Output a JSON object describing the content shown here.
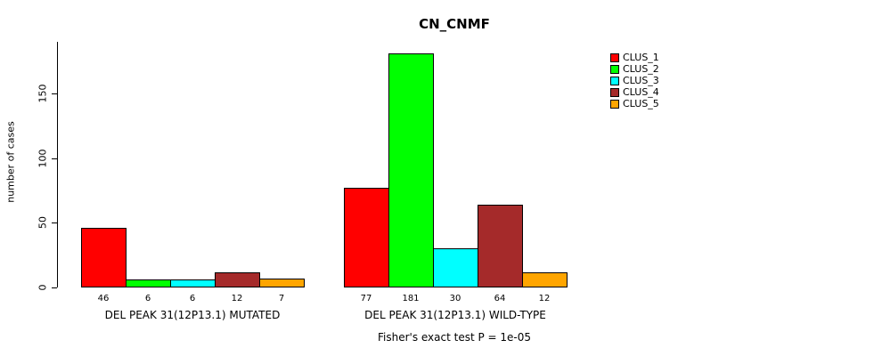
{
  "chart_data": {
    "type": "bar",
    "title": "CN_CNMF",
    "ylabel": "number of cases",
    "annotation": "Fisher's exact test P = 1e-05",
    "ylim": [
      0,
      190
    ],
    "yticks": [
      0,
      50,
      100,
      150
    ],
    "grid": false,
    "legend_position": "top-right",
    "series": [
      {
        "name": "CLUS_1",
        "color": "#FF0000"
      },
      {
        "name": "CLUS_2",
        "color": "#00FF00"
      },
      {
        "name": "CLUS_3",
        "color": "#00FFFF"
      },
      {
        "name": "CLUS_4",
        "color": "#A52A2A"
      },
      {
        "name": "CLUS_5",
        "color": "#FFA500"
      }
    ],
    "groups": [
      {
        "label": "DEL PEAK 31(12P13.1) MUTATED",
        "values": [
          46,
          6,
          6,
          12,
          7
        ]
      },
      {
        "label": "DEL PEAK 31(12P13.1) WILD-TYPE",
        "values": [
          77,
          181,
          30,
          64,
          12
        ]
      }
    ]
  }
}
